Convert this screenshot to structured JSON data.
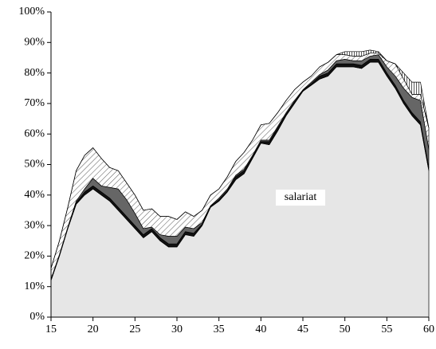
{
  "chart_data": {
    "type": "stacked_area",
    "x": [
      15,
      16,
      17,
      18,
      19,
      20,
      21,
      22,
      23,
      24,
      25,
      26,
      27,
      28,
      29,
      30,
      31,
      32,
      33,
      34,
      35,
      36,
      37,
      38,
      39,
      40,
      41,
      42,
      43,
      44,
      45,
      46,
      47,
      48,
      49,
      50,
      51,
      52,
      53,
      54,
      55,
      56,
      57,
      58,
      59,
      60
    ],
    "series": [
      {
        "name": "salariat",
        "color": "#e6e6e6",
        "hatch": "none",
        "values": [
          12,
          20,
          29,
          37,
          40,
          42,
          40,
          38,
          35,
          32,
          29,
          26,
          28,
          25,
          23,
          23,
          27,
          26.5,
          30,
          36,
          38,
          41,
          45,
          47,
          52,
          57,
          56.5,
          61,
          66,
          70,
          74,
          76,
          78,
          79,
          82,
          82,
          82,
          81.5,
          83.5,
          83.5,
          79,
          75,
          70,
          66,
          63,
          48
        ]
      },
      {
        "color": "#111111",
        "hatch": "none",
        "values": [
          0.3,
          0.3,
          0.3,
          0.5,
          1,
          1,
          1,
          1,
          1,
          1,
          1,
          1,
          1,
          1,
          1,
          1,
          1,
          1,
          0.5,
          0.3,
          0.5,
          0.5,
          1,
          1,
          0.5,
          0.5,
          1,
          1,
          0.5,
          0.5,
          0.3,
          0.5,
          1,
          1,
          1,
          1,
          1,
          1,
          1,
          1,
          1,
          1,
          1,
          1,
          1,
          1
        ]
      },
      {
        "color": "#666666",
        "hatch": "none",
        "values": [
          0.2,
          0.2,
          0.2,
          0.5,
          1,
          2.5,
          2,
          3.5,
          6,
          5.5,
          4,
          2,
          0.5,
          1,
          2.5,
          2.5,
          1.5,
          1.5,
          0.5,
          0.2,
          0.5,
          0.5,
          0.5,
          0.5,
          0.5,
          0.5,
          0.5,
          0.5,
          0.5,
          0.5,
          0.2,
          0.5,
          0.5,
          1,
          1,
          1.5,
          1,
          1.5,
          1,
          1.5,
          2,
          3,
          4,
          5,
          7,
          6
        ]
      },
      {
        "color": "#555555",
        "hatch": "diagonal",
        "values": [
          3.5,
          4.5,
          6.5,
          10,
          11,
          10,
          9,
          6.5,
          6,
          5.5,
          6,
          6,
          6,
          6,
          6.5,
          5.5,
          5,
          4,
          4,
          3.5,
          3,
          4,
          4.5,
          5.5,
          5,
          5,
          5.5,
          4.5,
          4,
          3.5,
          2.5,
          2,
          2.5,
          2.5,
          2,
          1.5,
          1.5,
          1.5,
          1,
          0.5,
          2,
          4,
          3,
          1,
          2,
          7
        ]
      },
      {
        "color": "#333333",
        "hatch": "vertical",
        "values": [
          0,
          0,
          0,
          0,
          0,
          0,
          0,
          0,
          0,
          0,
          0,
          0,
          0,
          0,
          0,
          0,
          0,
          0,
          0,
          0,
          0,
          0,
          0,
          0,
          0,
          0,
          0,
          0,
          0,
          0,
          0,
          0,
          0,
          0,
          0,
          1,
          1.5,
          1.5,
          1,
          0.5,
          0,
          0,
          2,
          4,
          4,
          0
        ]
      }
    ],
    "xlim": [
      15,
      60
    ],
    "xticks": [
      15,
      20,
      25,
      30,
      35,
      40,
      45,
      50,
      55,
      60
    ],
    "ylim": [
      0,
      100
    ],
    "yticks": [
      {
        "value": 0,
        "label": "0%"
      },
      {
        "value": 10,
        "label": "10%"
      },
      {
        "value": 20,
        "label": "20%"
      },
      {
        "value": 30,
        "label": "30%"
      },
      {
        "value": 40,
        "label": "40%"
      },
      {
        "value": 50,
        "label": "50%"
      },
      {
        "value": 60,
        "label": "60%"
      },
      {
        "value": 70,
        "label": "70%"
      },
      {
        "value": 80,
        "label": "80%"
      },
      {
        "value": 90,
        "label": "90%"
      },
      {
        "value": 100,
        "label": "100%"
      }
    ]
  }
}
